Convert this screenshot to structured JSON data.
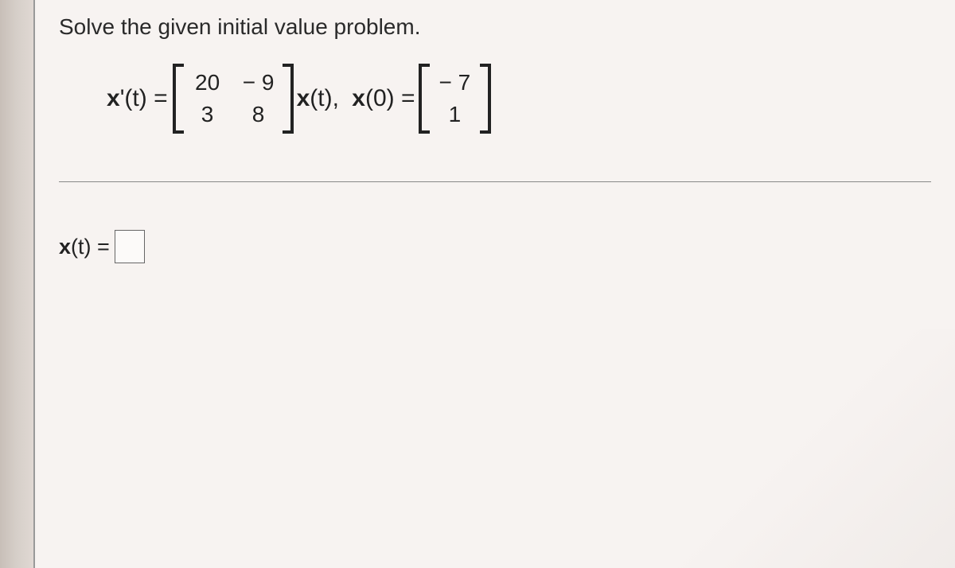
{
  "title": "Solve the given initial value problem.",
  "equation": {
    "lhs": "x'(t) =",
    "matrix": {
      "rows": [
        [
          "20",
          "− 9"
        ],
        [
          "3",
          "8"
        ]
      ]
    },
    "mid_left": "x(t),",
    "mid_right": "x(0) =",
    "vector": {
      "cells": [
        "− 7",
        "1"
      ]
    }
  },
  "answer": {
    "label": "x(t) ="
  },
  "colors": {
    "background": "#e8e1de",
    "page": "#f7f3f1",
    "text": "#2a2a2a",
    "math_text": "#222",
    "divider": "#888",
    "input_border": "#666"
  },
  "fonts": {
    "title_size": 28,
    "math_size": 30,
    "matrix_size": 28,
    "answer_size": 27
  }
}
